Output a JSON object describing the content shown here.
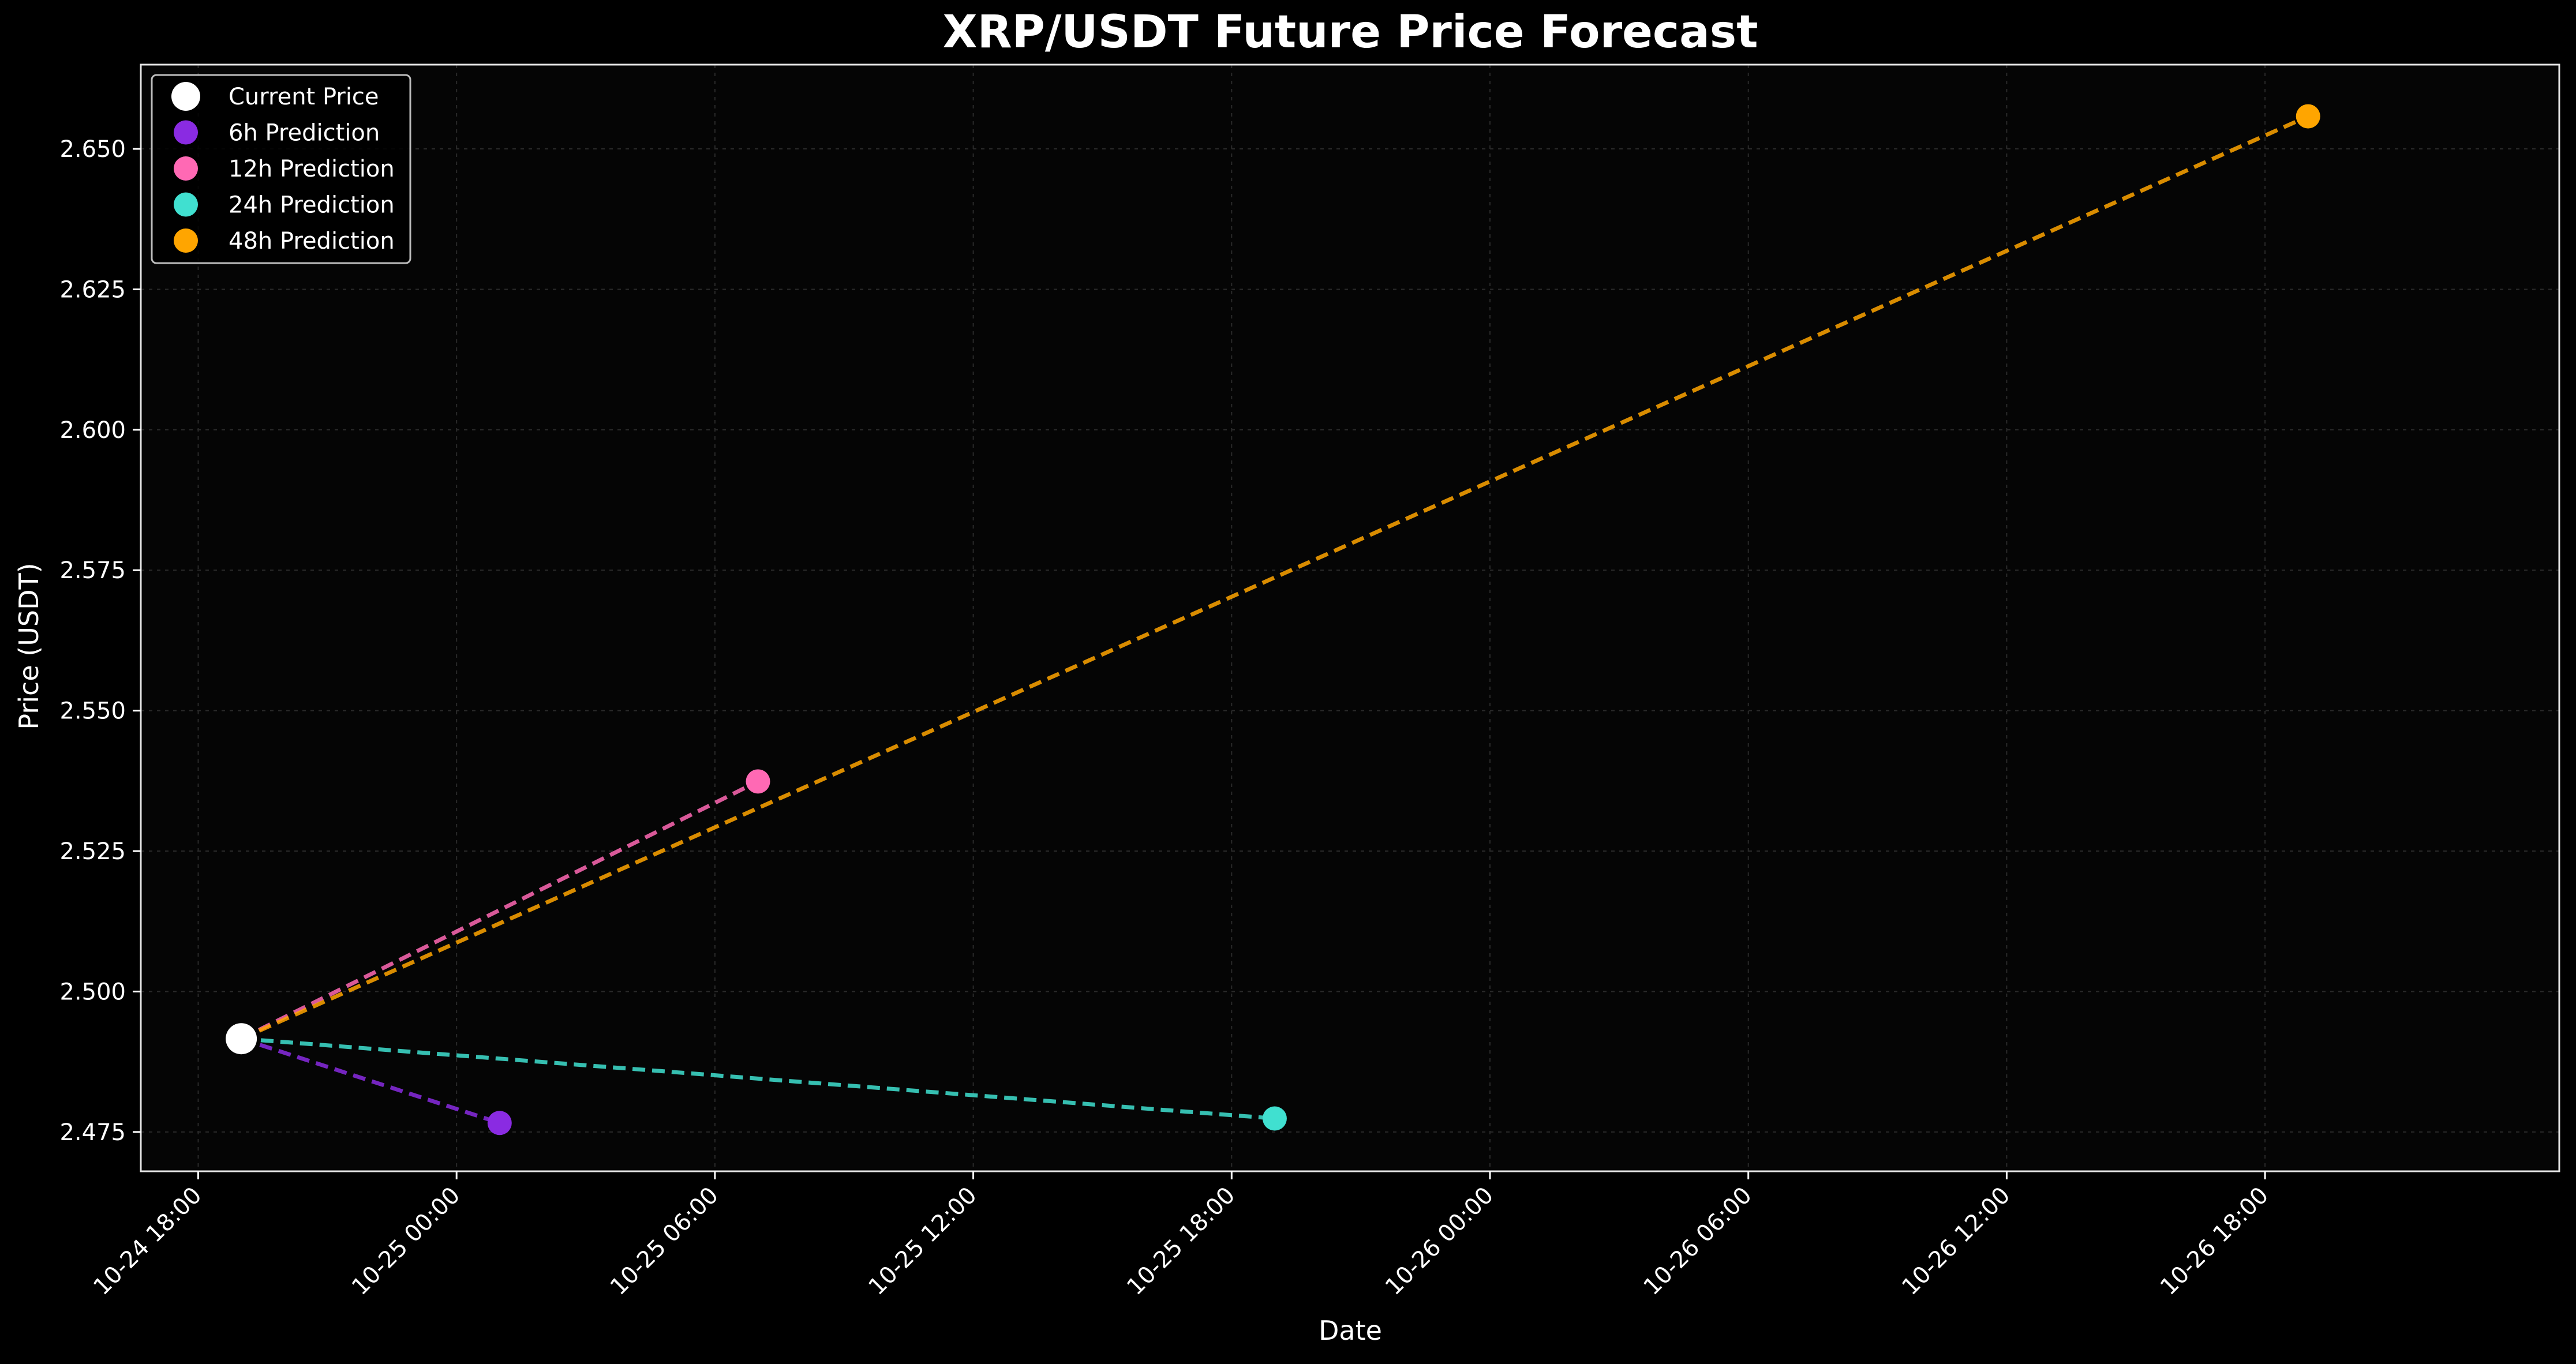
{
  "chart_data": {
    "type": "line",
    "title": "XRP/USDT Future Price Forecast",
    "xlabel": "Date",
    "ylabel": "Price (USDT)",
    "xlim": [
      "2024-10-24 16:40",
      "2024-10-27 00:50"
    ],
    "ylim": [
      2.468,
      2.665
    ],
    "x_ticks": [
      {
        "label": "10-24 18:00",
        "value": "2024-10-24 18:00"
      },
      {
        "label": "10-25 00:00",
        "value": "2024-10-25 00:00"
      },
      {
        "label": "10-25 06:00",
        "value": "2024-10-25 06:00"
      },
      {
        "label": "10-25 12:00",
        "value": "2024-10-25 12:00"
      },
      {
        "label": "10-25 18:00",
        "value": "2024-10-25 18:00"
      },
      {
        "label": "10-26 00:00",
        "value": "2024-10-26 00:00"
      },
      {
        "label": "10-26 06:00",
        "value": "2024-10-26 06:00"
      },
      {
        "label": "10-26 12:00",
        "value": "2024-10-26 12:00"
      },
      {
        "label": "10-26 18:00",
        "value": "2024-10-26 18:00"
      }
    ],
    "y_ticks": [
      2.475,
      2.5,
      2.525,
      2.55,
      2.575,
      2.6,
      2.625,
      2.65
    ],
    "y_tick_labels": [
      "2.475",
      "2.500",
      "2.525",
      "2.550",
      "2.575",
      "2.600",
      "2.625",
      "2.650"
    ],
    "grid": true,
    "legend_position": "top-left",
    "current": {
      "name": "Current Price",
      "color": "#ffffff",
      "x": "2024-10-24 19:00",
      "y": 2.4916
    },
    "predictions": [
      {
        "name": "6h Prediction",
        "color": "#8a2be2",
        "x": "2024-10-25 01:00",
        "y": 2.4766
      },
      {
        "name": "12h Prediction",
        "color": "#ff69b4",
        "x": "2024-10-25 07:00",
        "y": 2.5374
      },
      {
        "name": "24h Prediction",
        "color": "#40e0d0",
        "x": "2024-10-25 19:00",
        "y": 2.4774
      },
      {
        "name": "48h Prediction",
        "color": "#ffa500",
        "x": "2024-10-26 19:00",
        "y": 2.6558
      }
    ]
  }
}
